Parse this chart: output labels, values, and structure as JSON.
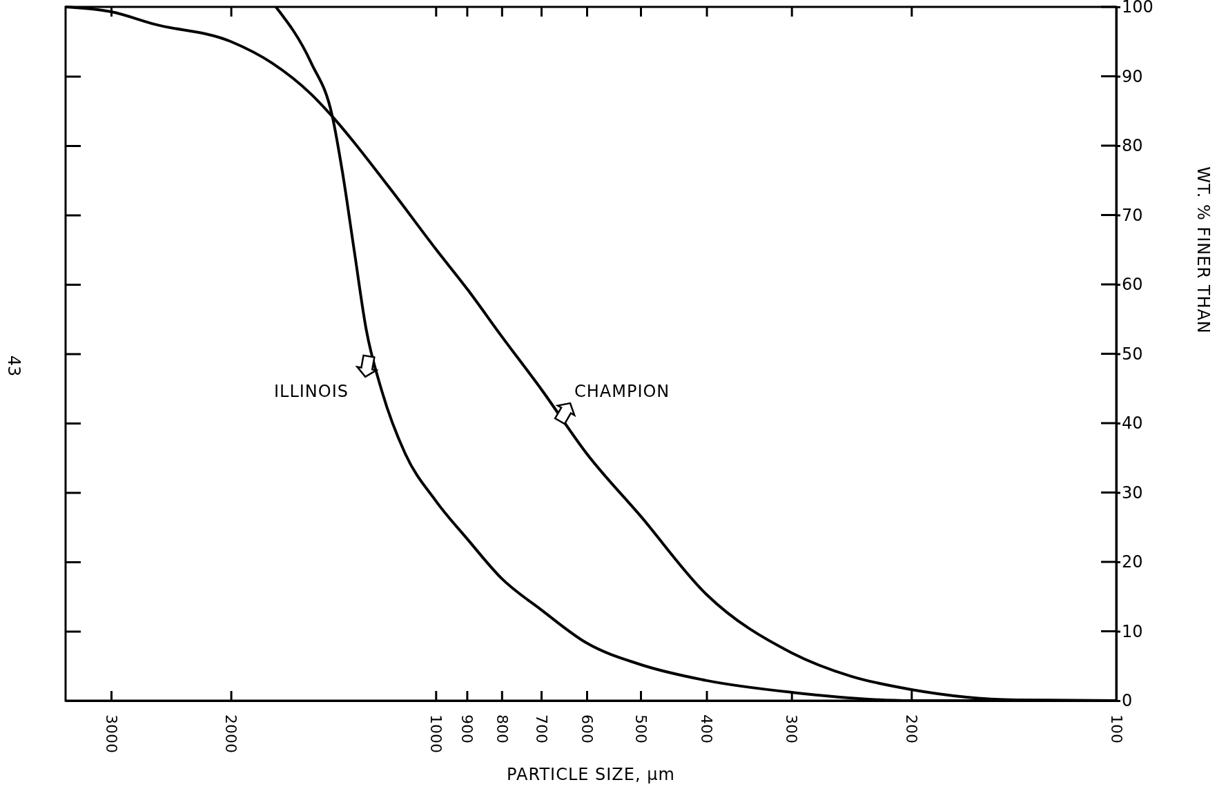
{
  "chart_data": {
    "type": "line",
    "xlabel": "PARTICLE SIZE, μm",
    "ylabel": "WT. % FINER THAN",
    "log": "x",
    "xlim": [
      3500,
      100
    ],
    "ylim": [
      0,
      100
    ],
    "xticks": [
      3000,
      2000,
      1000,
      900,
      800,
      700,
      600,
      500,
      400,
      300,
      200,
      100
    ],
    "yticks": [
      0,
      10,
      20,
      30,
      40,
      50,
      60,
      70,
      80,
      90,
      100
    ],
    "grid": false,
    "marker": "none",
    "line_style": "solid",
    "annotations": [
      "43"
    ],
    "series": [
      {
        "name": "ILLINOIS",
        "color": "#000000",
        "x": [
          1718,
          1524,
          1419,
          1371,
          1318,
          1266,
          1200,
          1109,
          1000,
          897,
          800,
          700,
          600,
          500,
          400,
          300,
          200,
          100
        ],
        "values": [
          100,
          91.9,
          84.2,
          76.1,
          64.9,
          53.6,
          44.6,
          35.6,
          28.8,
          23.2,
          17.6,
          13.1,
          8.3,
          5.2,
          2.9,
          1.2,
          0,
          0
        ]
      },
      {
        "name": "CHAMPION",
        "color": "#000000",
        "x": [
          3500,
          3000,
          2590,
          2000,
          1740,
          1524,
          1419,
          1169,
          1000,
          897,
          800,
          700,
          600,
          500,
          400,
          300,
          245,
          200,
          140,
          100
        ],
        "values": [
          100,
          99.3,
          97.5,
          95,
          91.9,
          87.4,
          84.2,
          73.9,
          65.1,
          59.2,
          52.5,
          44.9,
          35.6,
          26.6,
          15.3,
          6.9,
          3.5,
          1.6,
          0.1,
          0
        ]
      }
    ]
  }
}
